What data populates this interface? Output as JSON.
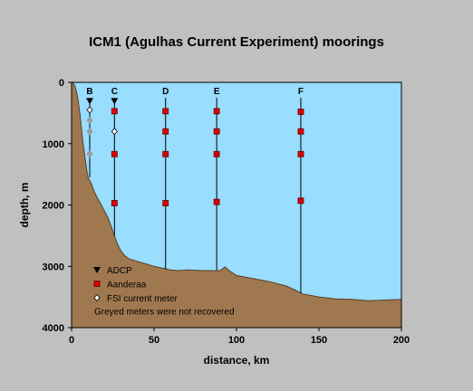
{
  "chart_data": {
    "type": "area",
    "title": "ICM1 (Agulhas Current Experiment) moorings",
    "xlabel": "distance, km",
    "ylabel": "depth, m",
    "xlim": [
      0,
      200
    ],
    "ylim": [
      4000,
      0
    ],
    "x_ticks": [
      0,
      50,
      100,
      150,
      200
    ],
    "y_ticks": [
      0,
      1000,
      2000,
      3000,
      4000
    ],
    "colors": {
      "background": "#c0c0c0",
      "water": "#99ddff",
      "seafloor": "#a07850",
      "aanderaa": "#e00000",
      "lost_meter": "#a0a0a0"
    },
    "bathymetry": {
      "x": [
        0,
        1,
        2,
        3,
        4,
        5,
        6,
        7,
        8,
        9,
        10,
        12,
        14,
        16,
        18,
        20,
        22,
        24,
        26,
        28,
        30,
        32,
        35,
        40,
        45,
        50,
        55,
        60,
        65,
        70,
        80,
        90,
        93,
        95,
        100,
        110,
        120,
        130,
        135,
        140,
        150,
        160,
        170,
        180,
        190,
        200
      ],
      "depth": [
        0,
        10,
        60,
        150,
        300,
        500,
        750,
        1000,
        1200,
        1400,
        1550,
        1650,
        1800,
        1900,
        2000,
        2100,
        2200,
        2350,
        2500,
        2650,
        2750,
        2820,
        2880,
        2920,
        2960,
        3000,
        3030,
        3060,
        3070,
        3060,
        3070,
        3070,
        3010,
        3060,
        3150,
        3200,
        3250,
        3320,
        3380,
        3450,
        3500,
        3530,
        3540,
        3560,
        3550,
        3540
      ]
    },
    "moorings": [
      {
        "name": "B",
        "x": 11,
        "bottom": 1550,
        "adcp": true,
        "instruments": [
          {
            "depth": 450,
            "type": "fsi",
            "recovered": true
          },
          {
            "depth": 620,
            "type": "fsi",
            "recovered": false
          },
          {
            "depth": 800,
            "type": "fsi",
            "recovered": false
          },
          {
            "depth": 1170,
            "type": "fsi",
            "recovered": false
          }
        ]
      },
      {
        "name": "C",
        "x": 26,
        "bottom": 2500,
        "adcp": true,
        "instruments": [
          {
            "depth": 470,
            "type": "aanderaa",
            "recovered": true
          },
          {
            "depth": 800,
            "type": "fsi",
            "recovered": true
          },
          {
            "depth": 1170,
            "type": "aanderaa",
            "recovered": true
          },
          {
            "depth": 1970,
            "type": "aanderaa",
            "recovered": true
          }
        ]
      },
      {
        "name": "D",
        "x": 57,
        "bottom": 3050,
        "adcp": false,
        "instruments": [
          {
            "depth": 470,
            "type": "aanderaa",
            "recovered": true
          },
          {
            "depth": 800,
            "type": "aanderaa",
            "recovered": true
          },
          {
            "depth": 1170,
            "type": "aanderaa",
            "recovered": true
          },
          {
            "depth": 1970,
            "type": "aanderaa",
            "recovered": true
          }
        ]
      },
      {
        "name": "E",
        "x": 88,
        "bottom": 3060,
        "adcp": false,
        "instruments": [
          {
            "depth": 470,
            "type": "aanderaa",
            "recovered": true
          },
          {
            "depth": 800,
            "type": "aanderaa",
            "recovered": true
          },
          {
            "depth": 1170,
            "type": "aanderaa",
            "recovered": true
          },
          {
            "depth": 1950,
            "type": "aanderaa",
            "recovered": true
          }
        ]
      },
      {
        "name": "F",
        "x": 139,
        "bottom": 3440,
        "adcp": false,
        "instruments": [
          {
            "depth": 480,
            "type": "aanderaa",
            "recovered": true
          },
          {
            "depth": 800,
            "type": "aanderaa",
            "recovered": true
          },
          {
            "depth": 1170,
            "type": "aanderaa",
            "recovered": true
          },
          {
            "depth": 1930,
            "type": "aanderaa",
            "recovered": true
          }
        ]
      }
    ],
    "legend": {
      "placement": "bottom-left",
      "items": [
        {
          "marker": "adcp",
          "label": "ADCP"
        },
        {
          "marker": "aanderaa",
          "label": "Aanderaa"
        },
        {
          "marker": "fsi",
          "label": "FSI current meter"
        }
      ],
      "note": "Greyed meters were not recovered"
    }
  }
}
